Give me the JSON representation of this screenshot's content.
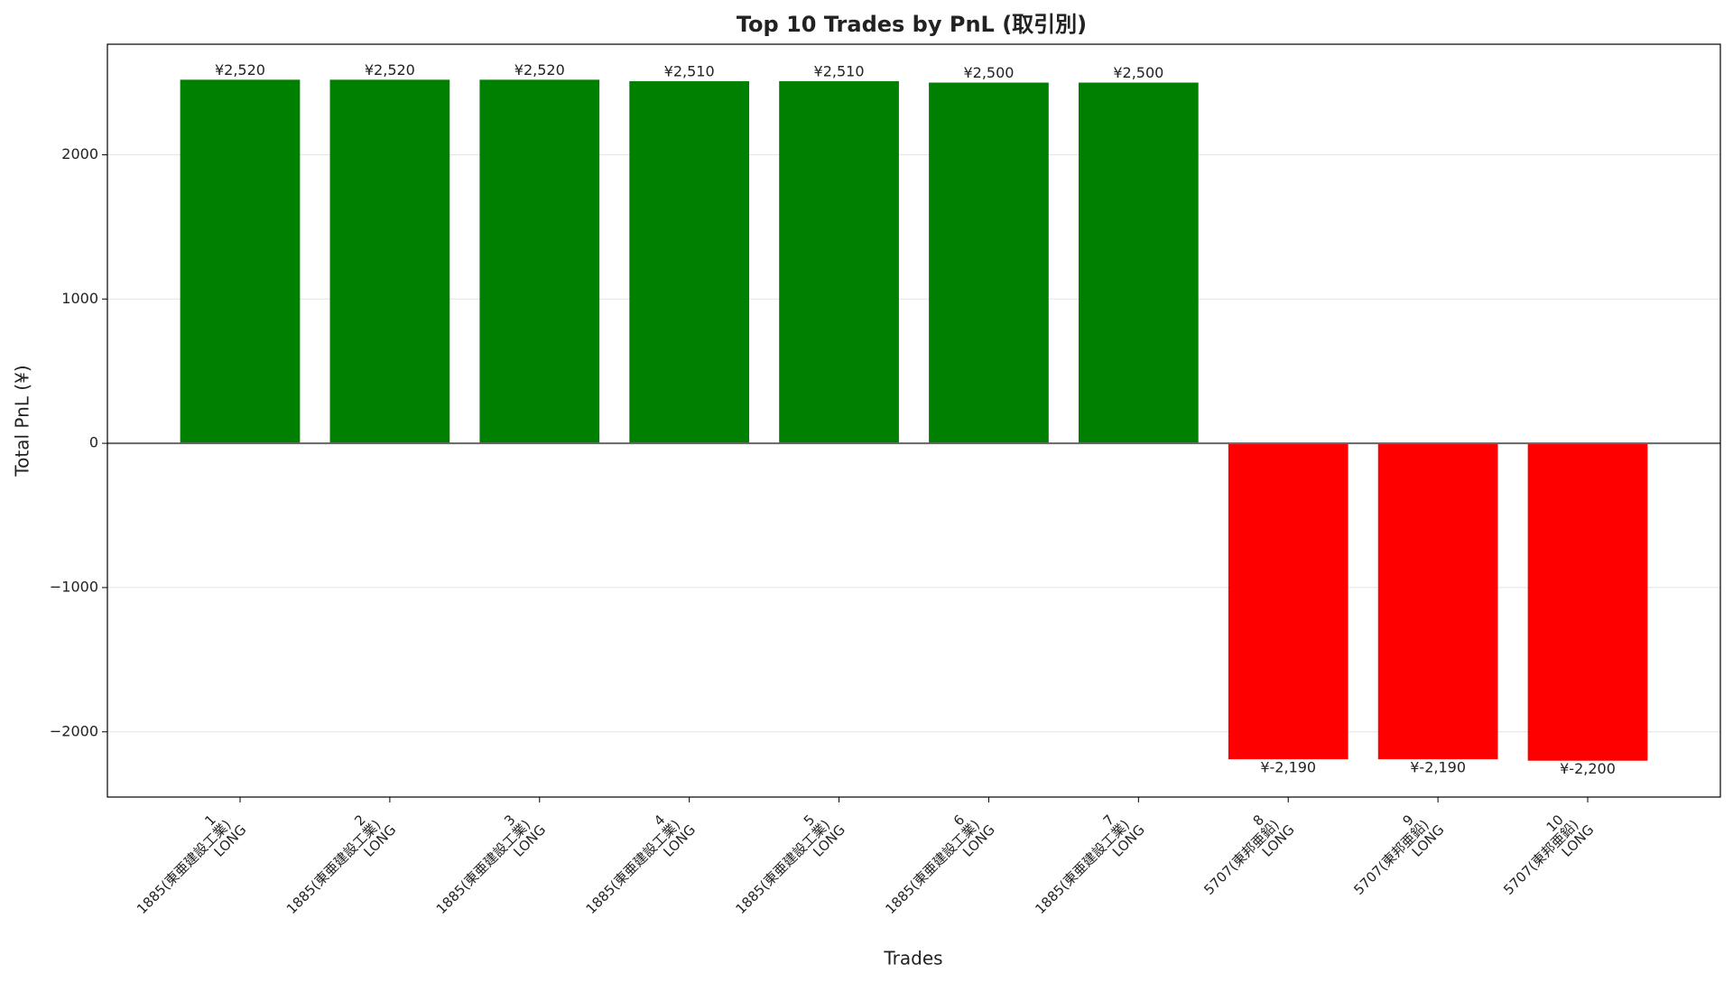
{
  "chart_data": {
    "type": "bar",
    "title": "Top 10 Trades by PnL (取引別)",
    "xlabel": "Trades",
    "ylabel": "Total PnL (¥)",
    "categories": [
      [
        "1",
        "1885(東亜建設工業)",
        "LONG"
      ],
      [
        "2",
        "1885(東亜建設工業)",
        "LONG"
      ],
      [
        "3",
        "1885(東亜建設工業)",
        "LONG"
      ],
      [
        "4",
        "1885(東亜建設工業)",
        "LONG"
      ],
      [
        "5",
        "1885(東亜建設工業)",
        "LONG"
      ],
      [
        "6",
        "1885(東亜建設工業)",
        "LONG"
      ],
      [
        "7",
        "1885(東亜建設工業)",
        "LONG"
      ],
      [
        "8",
        "5707(東邦亜鉛)",
        "LONG"
      ],
      [
        "9",
        "5707(東邦亜鉛)",
        "LONG"
      ],
      [
        "10",
        "5707(東邦亜鉛)",
        "LONG"
      ]
    ],
    "values": [
      2520,
      2520,
      2520,
      2510,
      2510,
      2500,
      2500,
      -2190,
      -2190,
      -2200
    ],
    "value_labels": [
      "¥2,520",
      "¥2,520",
      "¥2,520",
      "¥2,510",
      "¥2,510",
      "¥2,500",
      "¥2,500",
      "¥-2,190",
      "¥-2,190",
      "¥-2,200"
    ],
    "colors": [
      "#008000",
      "#008000",
      "#008000",
      "#008000",
      "#008000",
      "#008000",
      "#008000",
      "#ff0000",
      "#ff0000",
      "#ff0000"
    ],
    "ylim": [
      -2452,
      2766
    ],
    "yticks": [
      {
        "value": -2000,
        "label": "−2000"
      },
      {
        "value": -1000,
        "label": "−1000"
      },
      0,
      1000,
      2000
    ],
    "grid": true
  }
}
